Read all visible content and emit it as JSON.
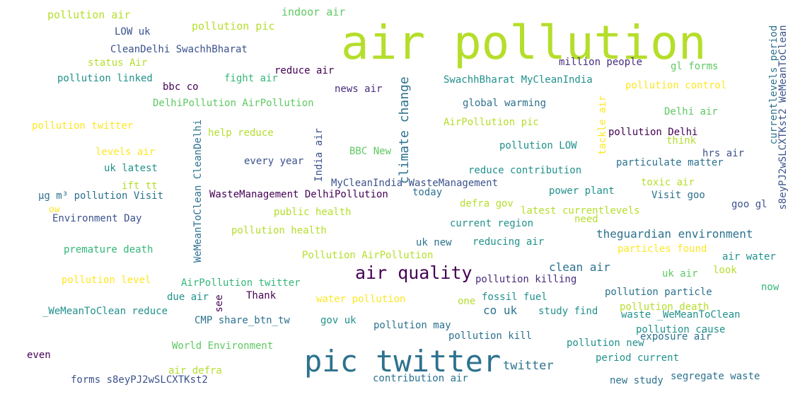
{
  "palette": {
    "yellow_green": "#b5de2b",
    "green": "#5ec962",
    "teal": "#21918c",
    "blue": "#3b528b",
    "purple": "#440154",
    "light_yellow": "#fde725",
    "dark_teal": "#2c728e",
    "mid_green": "#35b779",
    "indigo": "#472d7b"
  },
  "words": [
    {
      "id": "w0",
      "text": "air pollution"
    },
    {
      "id": "w1",
      "text": "pic twitter"
    },
    {
      "id": "w2",
      "text": "air quality"
    },
    {
      "id": "w3",
      "text": "climate change"
    },
    {
      "id": "w4",
      "text": "pollution air"
    },
    {
      "id": "w5",
      "text": "indoor air"
    },
    {
      "id": "w6",
      "text": "pollution pic"
    },
    {
      "id": "w7",
      "text": "LOW uk"
    },
    {
      "id": "w8",
      "text": "CleanDelhi SwachhBharat"
    },
    {
      "id": "w9",
      "text": "status Air"
    },
    {
      "id": "w10",
      "text": "pollution linked"
    },
    {
      "id": "w11",
      "text": "bbc co"
    },
    {
      "id": "w12",
      "text": "fight air"
    },
    {
      "id": "w13",
      "text": "reduce air"
    },
    {
      "id": "w14",
      "text": "news air"
    },
    {
      "id": "w15",
      "text": "million people"
    },
    {
      "id": "w16",
      "text": "gl forms"
    },
    {
      "id": "w17",
      "text": "SwachhBharat MyCleanIndia"
    },
    {
      "id": "w18",
      "text": "pollution control"
    },
    {
      "id": "w19",
      "text": "DelhiPollution AirPollution"
    },
    {
      "id": "w20",
      "text": "global warming"
    },
    {
      "id": "w21",
      "text": "Delhi air"
    },
    {
      "id": "w22",
      "text": "pollution twitter"
    },
    {
      "id": "w23",
      "text": "help reduce"
    },
    {
      "id": "w24",
      "text": "AirPollution pic"
    },
    {
      "id": "w25",
      "text": "pollution Delhi"
    },
    {
      "id": "w26",
      "text": "think"
    },
    {
      "id": "w27",
      "text": "levels air"
    },
    {
      "id": "w28",
      "text": "BBC New"
    },
    {
      "id": "w29",
      "text": "pollution LOW"
    },
    {
      "id": "w30",
      "text": "hrs air"
    },
    {
      "id": "w31",
      "text": "every year"
    },
    {
      "id": "w32",
      "text": "particulate matter"
    },
    {
      "id": "w33",
      "text": "uk latest"
    },
    {
      "id": "w34",
      "text": "reduce contribution"
    },
    {
      "id": "w35",
      "text": "ift tt"
    },
    {
      "id": "w36",
      "text": "MyCleanIndia WasteManagement"
    },
    {
      "id": "w37",
      "text": "toxic air"
    },
    {
      "id": "w38",
      "text": "μg m³ pollution Visit"
    },
    {
      "id": "w39",
      "text": "WasteManagement DelhiPollution"
    },
    {
      "id": "w40",
      "text": "today"
    },
    {
      "id": "w41",
      "text": "power plant"
    },
    {
      "id": "w42",
      "text": "Visit goo"
    },
    {
      "id": "w43",
      "text": "goo gl"
    },
    {
      "id": "w44",
      "text": "ow"
    },
    {
      "id": "w45",
      "text": "defra gov"
    },
    {
      "id": "w46",
      "text": "latest currentlevels"
    },
    {
      "id": "w47",
      "text": "Environment Day"
    },
    {
      "id": "w48",
      "text": "public health"
    },
    {
      "id": "w49",
      "text": "need"
    },
    {
      "id": "w50",
      "text": "current region"
    },
    {
      "id": "w51",
      "text": "pollution health"
    },
    {
      "id": "w52",
      "text": "theguardian environment"
    },
    {
      "id": "w53",
      "text": "uk new"
    },
    {
      "id": "w54",
      "text": "reducing air"
    },
    {
      "id": "w55",
      "text": "particles found"
    },
    {
      "id": "w56",
      "text": "premature death"
    },
    {
      "id": "w57",
      "text": "Pollution AirPollution"
    },
    {
      "id": "w58",
      "text": "air water"
    },
    {
      "id": "w59",
      "text": "clean air"
    },
    {
      "id": "w60",
      "text": "look"
    },
    {
      "id": "w61",
      "text": "uk air"
    },
    {
      "id": "w62",
      "text": "pollution level"
    },
    {
      "id": "w63",
      "text": "AirPollution twitter"
    },
    {
      "id": "w64",
      "text": "pollution killing"
    },
    {
      "id": "w65",
      "text": "now"
    },
    {
      "id": "w66",
      "text": "due air"
    },
    {
      "id": "w67",
      "text": "Thank"
    },
    {
      "id": "w68",
      "text": "water pollution"
    },
    {
      "id": "w69",
      "text": "one"
    },
    {
      "id": "w70",
      "text": "fossil fuel"
    },
    {
      "id": "w71",
      "text": "pollution particle"
    },
    {
      "id": "w72",
      "text": "_WeMeanToClean reduce"
    },
    {
      "id": "w73",
      "text": "co uk"
    },
    {
      "id": "w74",
      "text": "study find"
    },
    {
      "id": "w75",
      "text": "pollution death"
    },
    {
      "id": "w76",
      "text": "waste _WeMeanToClean"
    },
    {
      "id": "w77",
      "text": "CMP share_btn_tw"
    },
    {
      "id": "w78",
      "text": "gov uk"
    },
    {
      "id": "w79",
      "text": "pollution may"
    },
    {
      "id": "w80",
      "text": "pollution cause"
    },
    {
      "id": "w81",
      "text": "pollution kill"
    },
    {
      "id": "w82",
      "text": "exposure air"
    },
    {
      "id": "w83",
      "text": "World Environment"
    },
    {
      "id": "w84",
      "text": "pollution new"
    },
    {
      "id": "w85",
      "text": "even"
    },
    {
      "id": "w86",
      "text": "period current"
    },
    {
      "id": "w87",
      "text": "twitter"
    },
    {
      "id": "w88",
      "text": "air defra"
    },
    {
      "id": "w89",
      "text": "forms s8eyPJ2wSLCXTKst2"
    },
    {
      "id": "w90",
      "text": "contribution air"
    },
    {
      "id": "w91",
      "text": "new study"
    },
    {
      "id": "w92",
      "text": "segregate waste"
    },
    {
      "id": "w93",
      "text": "WeMeanToClean CleanDelhi"
    },
    {
      "id": "w94",
      "text": "India air"
    },
    {
      "id": "w95",
      "text": "tackle air"
    },
    {
      "id": "w96",
      "text": "see"
    },
    {
      "id": "w97",
      "text": "currentlevels period"
    },
    {
      "id": "w98",
      "text": "s8eyPJ2wSLCXTKst2 WeMeanToClean"
    }
  ]
}
